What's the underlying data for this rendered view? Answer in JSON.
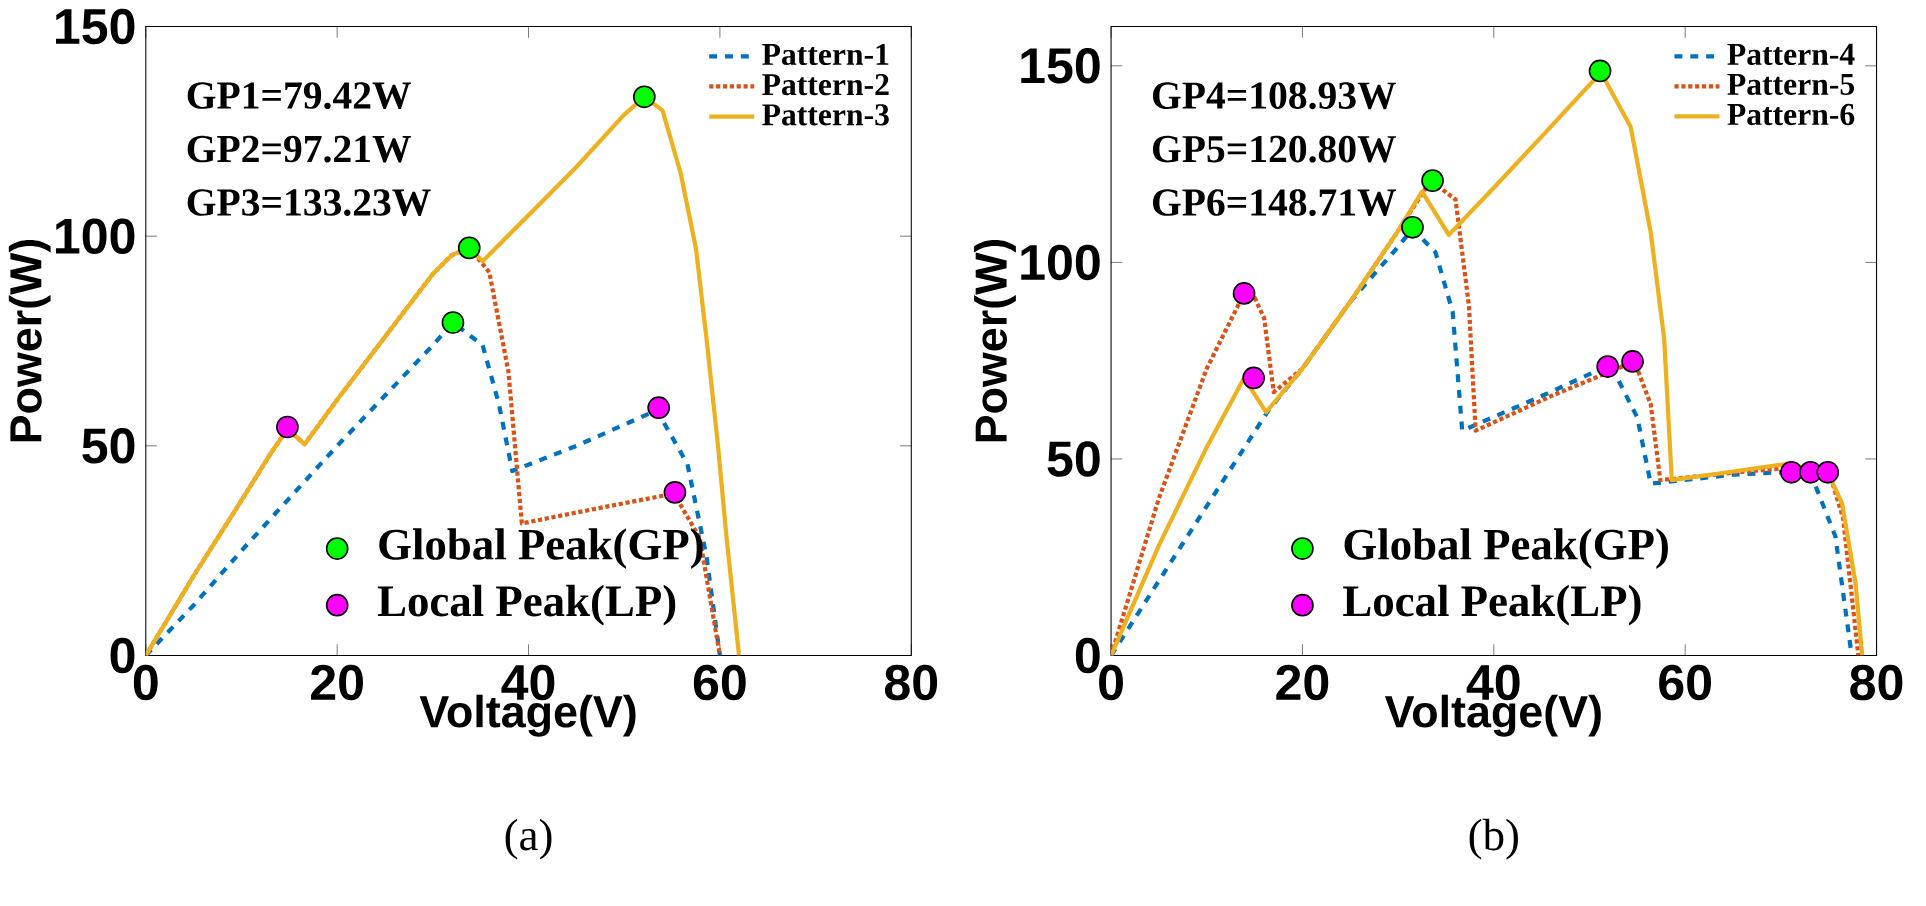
{
  "chart_data": [
    {
      "type": "line",
      "title": "(a)",
      "xlabel": "Voltage(V)",
      "ylabel": "Power(W)",
      "xlim": [
        0,
        80
      ],
      "ylim": [
        0,
        150
      ],
      "xticks": [
        0,
        20,
        40,
        60,
        80
      ],
      "yticks": [
        0,
        50,
        100,
        150
      ],
      "legend": "top right",
      "annotations": [
        "GP1=79.42W",
        "GP2=97.21W",
        "GP3=133.23W"
      ],
      "series": [
        {
          "name": "Pattern-1",
          "color": "#0072bd",
          "line_style": "dashed",
          "x": [
            0,
            5,
            10,
            20,
            25,
            30,
            32.1,
            35.2,
            36.9,
            38.3,
            45,
            53.4,
            56.6,
            58.6,
            60
          ],
          "values": [
            0,
            12,
            25,
            50,
            62,
            74,
            79.4,
            74,
            60,
            44,
            50,
            58.5,
            45.7,
            23.6,
            0
          ]
        },
        {
          "name": "Pattern-2",
          "color": "#d95319",
          "line_style": "dotted",
          "x": [
            0,
            5,
            10,
            13,
            14.8,
            16.6,
            20,
            25,
            30,
            32,
            33.8,
            35.9,
            37.9,
            39.3,
            47,
            55.2,
            57.9,
            60
          ],
          "values": [
            0,
            19,
            37,
            48,
            54,
            50.4,
            61,
            76,
            91,
            95.5,
            97.2,
            91.4,
            67.7,
            31.5,
            35,
            38.6,
            28,
            0
          ]
        },
        {
          "name": "Pattern-3",
          "color": "#edb120",
          "line_style": "solid",
          "x": [
            0,
            5,
            10,
            13,
            14.8,
            16.6,
            20,
            25,
            30,
            32,
            33.8,
            35.2,
            40,
            45,
            50,
            52.1,
            54,
            55.9,
            57.5,
            58.6,
            59.8,
            60.7,
            62
          ],
          "values": [
            0,
            19,
            37,
            48,
            54,
            50.4,
            61,
            76,
            91,
            95.5,
            97.2,
            94,
            105,
            116.5,
            129,
            133.2,
            130,
            115,
            97,
            75.6,
            50,
            28,
            0
          ]
        },
        {
          "name": "Global Peak(GP)",
          "type": "scatter",
          "marker": "circle",
          "color": "#00ff00",
          "x": [
            32.1,
            33.8,
            52.1
          ],
          "values": [
            79.42,
            97.21,
            133.23
          ]
        },
        {
          "name": "Local Peak(LP)",
          "type": "scatter",
          "marker": "circle",
          "color": "#ff00ff",
          "x": [
            14.8,
            53.6,
            55.3
          ],
          "values": [
            54.5,
            59.1,
            38.9
          ]
        }
      ]
    },
    {
      "type": "line",
      "title": "(b)",
      "xlabel": "Voltage(V)",
      "ylabel": "Power(W)",
      "xlim": [
        0,
        80
      ],
      "ylim": [
        0,
        160
      ],
      "xticks": [
        0,
        20,
        40,
        60,
        80
      ],
      "yticks": [
        0,
        50,
        100,
        150
      ],
      "legend": "top right",
      "annotations": [
        "GP4=108.93W",
        "GP5=120.80W",
        "GP6=148.71W"
      ],
      "series": [
        {
          "name": "Pattern-4",
          "color": "#0072bd",
          "line_style": "dashed",
          "x": [
            0,
            5,
            10,
            16.4,
            20,
            25,
            30,
            31.5,
            33.9,
            35.7,
            36.7,
            45,
            52.2,
            55,
            56.4,
            65,
            73,
            75.7,
            77.4
          ],
          "values": [
            0,
            19,
            38,
            62.2,
            73,
            90,
            104,
            108.5,
            102.6,
            87.4,
            57.2,
            66,
            74,
            60.5,
            43.7,
            46,
            47,
            30.3,
            0
          ]
        },
        {
          "name": "Pattern-5",
          "color": "#d95319",
          "line_style": "dotted",
          "x": [
            0,
            5,
            10,
            13.9,
            15,
            16,
            17,
            20,
            25,
            30,
            33.4,
            36,
            37.4,
            38.1,
            46,
            54.7,
            56.4,
            57.4,
            65,
            72,
            75,
            76.5,
            78.1
          ],
          "values": [
            0,
            40,
            73,
            92.1,
            91,
            85.8,
            67,
            73,
            90,
            108,
            120.8,
            116,
            89,
            57.2,
            66,
            74.8,
            63.9,
            44.6,
            46.5,
            48,
            47,
            35,
            0
          ]
        },
        {
          "name": "Pattern-6",
          "color": "#edb120",
          "line_style": "solid",
          "x": [
            0,
            5,
            10,
            13.9,
            16.2,
            20,
            25,
            30,
            32.5,
            35.3,
            40,
            45,
            51.2,
            54.3,
            56.4,
            57.8,
            58.6,
            65,
            70.9,
            75,
            76.4,
            77.8,
            78.5
          ],
          "values": [
            0,
            28,
            53,
            70.6,
            61.9,
            73,
            90,
            108,
            118,
            107,
            119,
            132,
            148.3,
            134.5,
            107.6,
            80.7,
            44.6,
            46.8,
            48.8,
            46,
            38.7,
            18.5,
            0
          ]
        },
        {
          "name": "Global Peak(GP)",
          "type": "scatter",
          "marker": "circle",
          "color": "#00ff00",
          "x": [
            31.5,
            33.6,
            51.1
          ],
          "values": [
            108.93,
            120.8,
            148.71
          ]
        },
        {
          "name": "Local Peak(LP)",
          "type": "scatter",
          "marker": "circle",
          "color": "#ff00ff",
          "x": [
            13.9,
            14.9,
            51.9,
            54.5,
            71.1,
            73.1,
            74.9
          ],
          "values": [
            92.1,
            70.6,
            73.5,
            74.8,
            46.6,
            46.6,
            46.6
          ]
        }
      ]
    }
  ]
}
